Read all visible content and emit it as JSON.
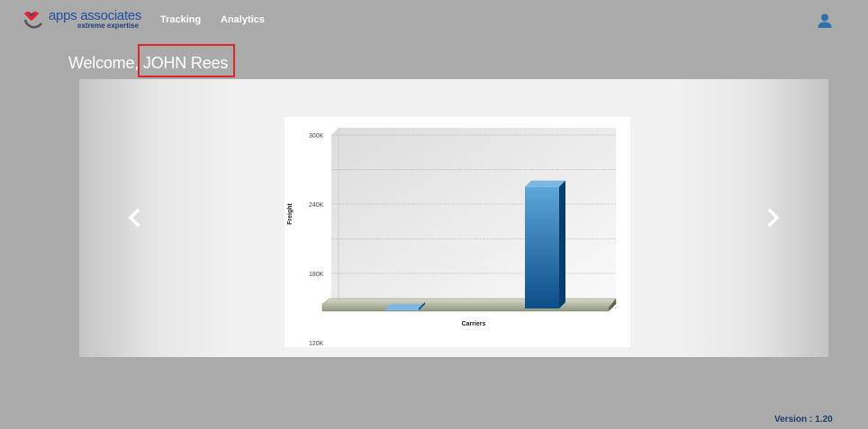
{
  "brand": {
    "name": "apps associates",
    "tagline": "extreme expertise",
    "colors": {
      "primary": "#1f4f9c",
      "accent": "#e0262b"
    }
  },
  "nav": {
    "items": [
      {
        "label": "Tracking"
      },
      {
        "label": "Analytics"
      }
    ],
    "user_icon": "user-icon"
  },
  "welcome": {
    "prefix": "Welcome,",
    "name": "JOHN Rees"
  },
  "carousel": {
    "prev_icon": "chevron-left-icon",
    "next_icon": "chevron-right-icon"
  },
  "chart_data": {
    "type": "bar",
    "xlabel": "Carriers",
    "ylabel": "Freight",
    "y_ticks": [
      "300K",
      "240K",
      "180K",
      "120K"
    ],
    "ylim": [
      120000,
      300000
    ],
    "categories": [
      "",
      ""
    ],
    "values": [
      148000,
      255000
    ],
    "color": "#1f6aa8",
    "grid": true,
    "style": "3d"
  },
  "footer": {
    "version_label": "Version :",
    "version_value": "1.20"
  }
}
